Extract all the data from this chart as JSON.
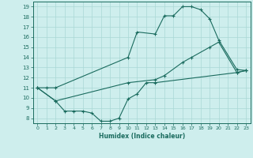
{
  "xlabel": "Humidex (Indice chaleur)",
  "bg_color": "#ceeeed",
  "grid_color": "#aad8d6",
  "line_color": "#1a6b5e",
  "xlim": [
    -0.5,
    23.5
  ],
  "ylim": [
    7.5,
    19.5
  ],
  "xticks": [
    0,
    1,
    2,
    3,
    4,
    5,
    6,
    7,
    8,
    9,
    10,
    11,
    12,
    13,
    14,
    15,
    16,
    17,
    18,
    19,
    20,
    21,
    22,
    23
  ],
  "yticks": [
    8,
    9,
    10,
    11,
    12,
    13,
    14,
    15,
    16,
    17,
    18,
    19
  ],
  "line1_x": [
    0,
    1,
    2,
    10,
    11,
    13,
    14,
    15,
    16,
    17,
    18,
    19,
    20,
    22,
    23
  ],
  "line1_y": [
    11,
    11,
    11,
    14,
    16.5,
    16.3,
    18.1,
    18.1,
    19.0,
    19.0,
    18.7,
    17.8,
    15.7,
    12.8,
    12.7
  ],
  "line2_x": [
    0,
    2,
    10,
    13,
    14,
    16,
    17,
    19,
    20,
    22,
    23
  ],
  "line2_y": [
    11,
    9.7,
    11.5,
    11.8,
    12.2,
    13.5,
    14.0,
    15.0,
    15.5,
    12.5,
    12.7
  ],
  "line3_x": [
    0,
    2,
    3,
    4,
    5,
    6,
    7,
    8,
    9,
    10,
    11,
    12,
    13,
    22,
    23
  ],
  "line3_y": [
    11,
    9.7,
    8.7,
    8.7,
    8.7,
    8.5,
    7.7,
    7.7,
    8.0,
    9.9,
    10.4,
    11.5,
    11.5,
    12.5,
    12.7
  ]
}
